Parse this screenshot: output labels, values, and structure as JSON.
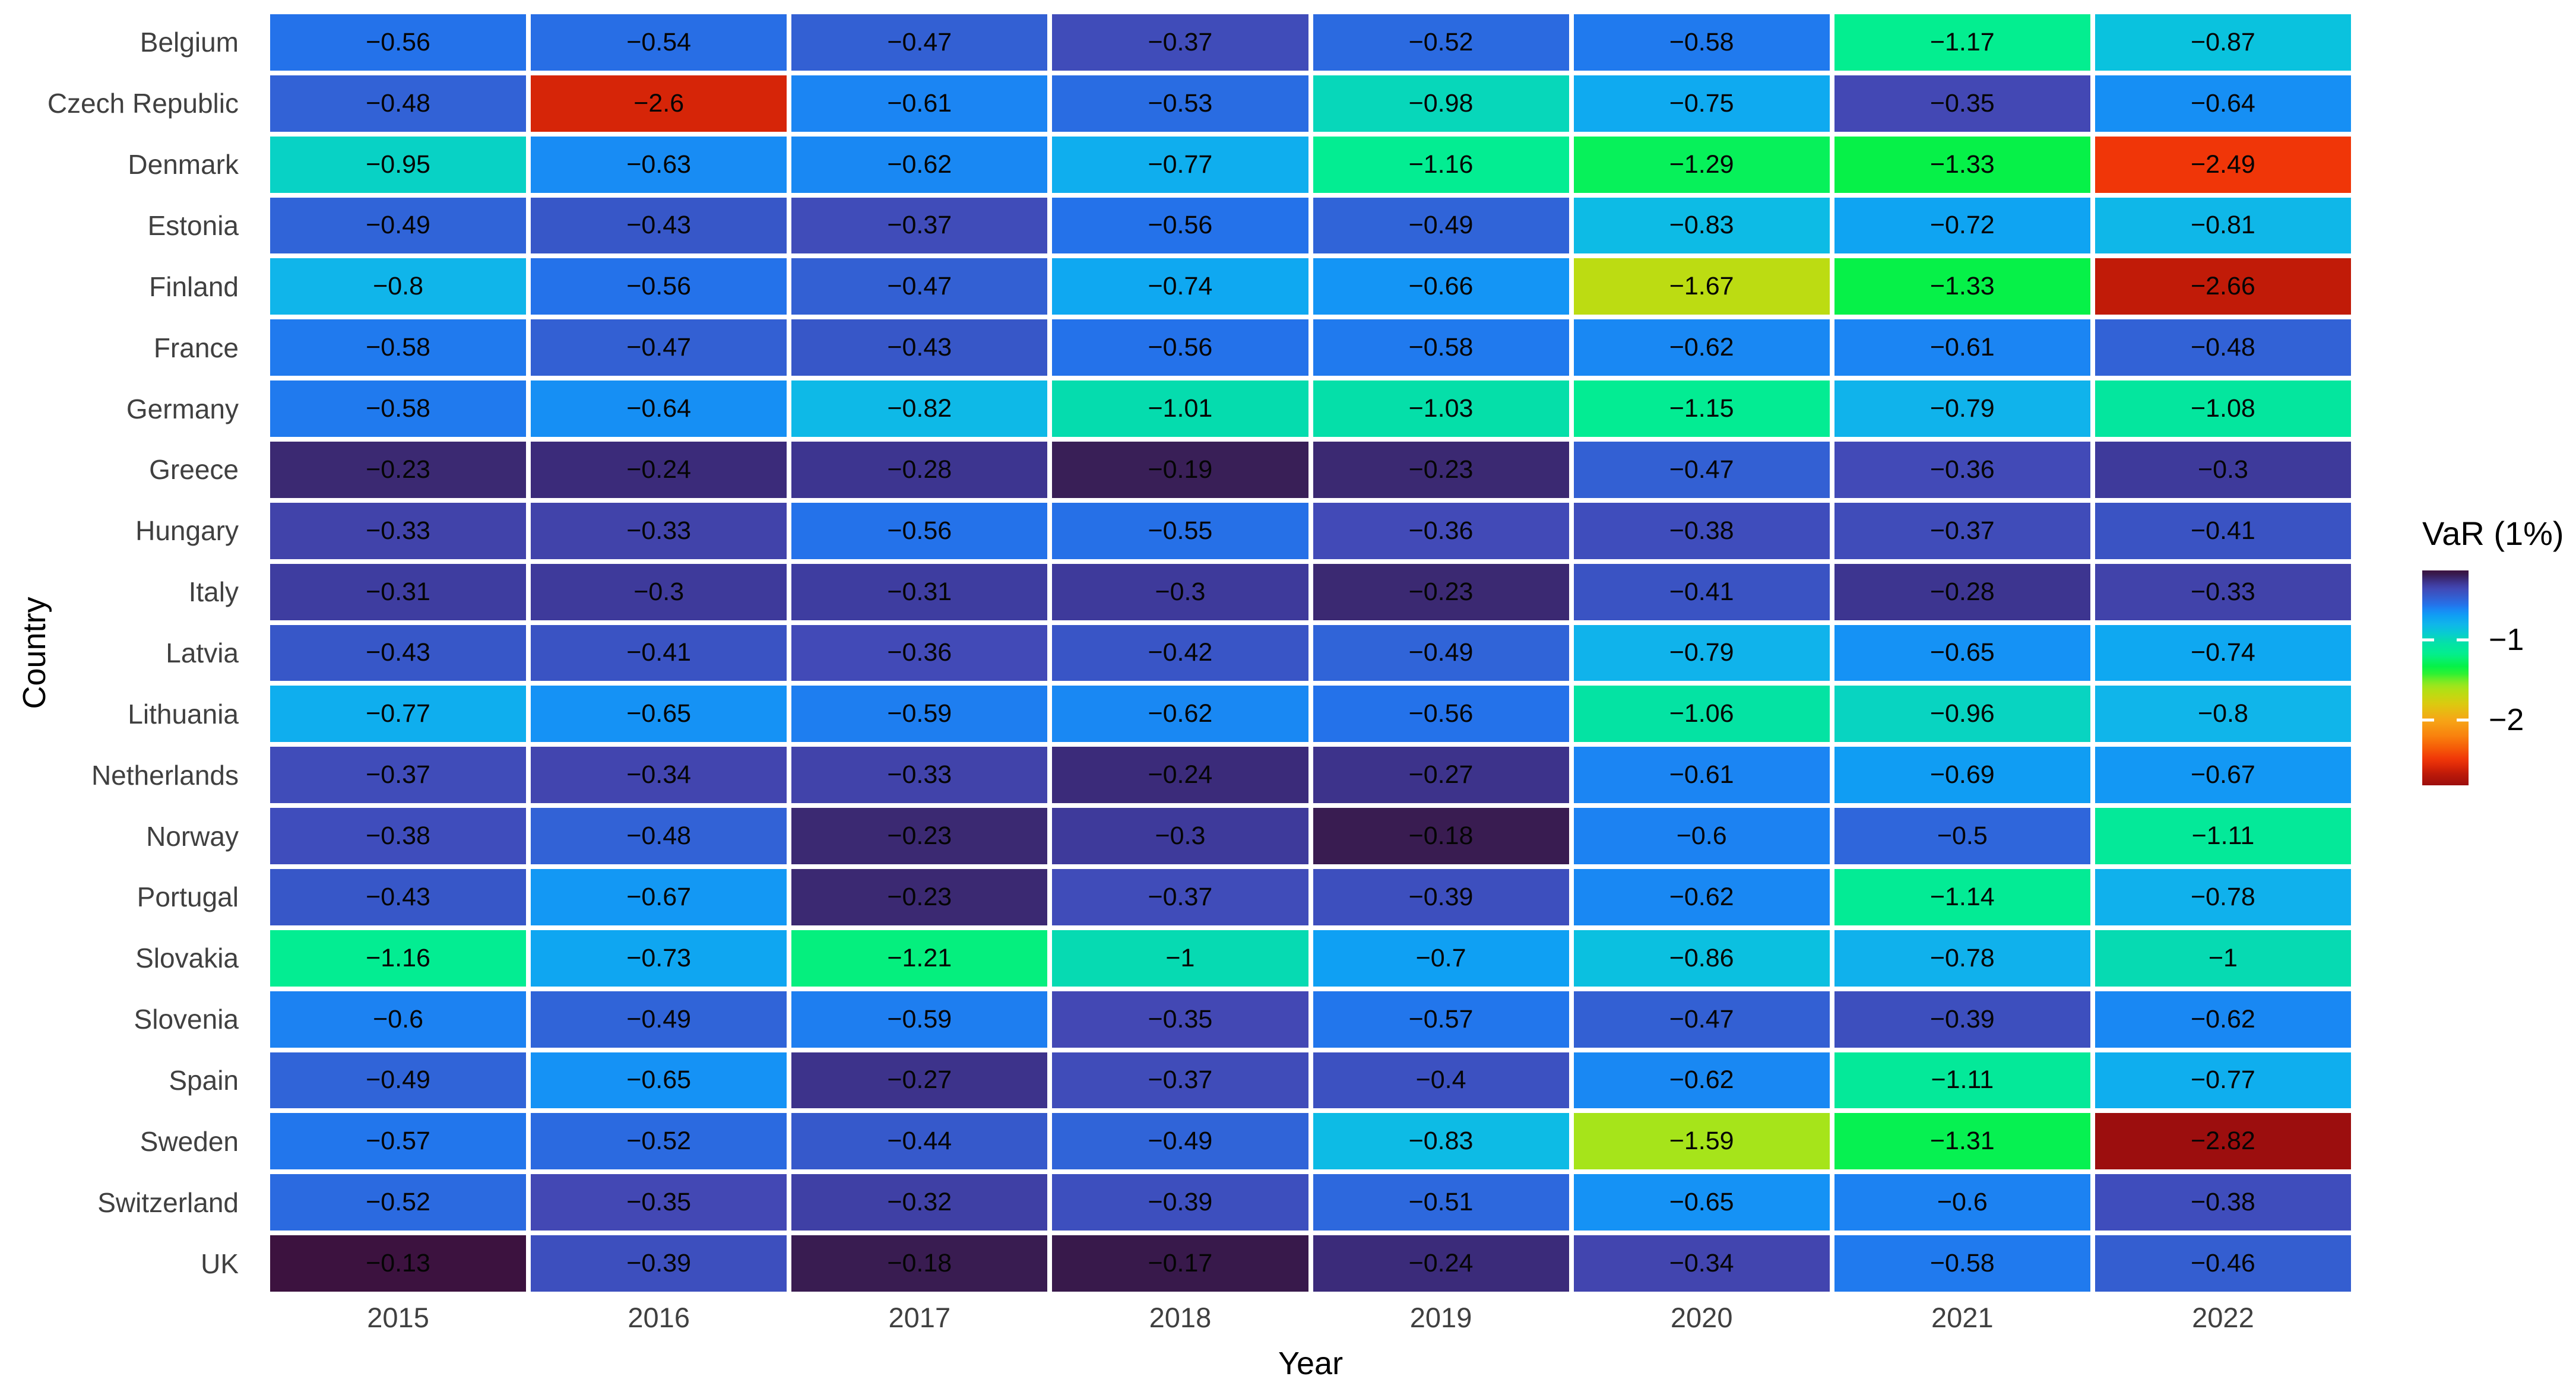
{
  "chart_data": {
    "type": "heatmap",
    "title": "",
    "xlabel": "Year",
    "ylabel": "Country",
    "legend_title": "VaR (1%)",
    "x": [
      "2015",
      "2016",
      "2017",
      "2018",
      "2019",
      "2020",
      "2021",
      "2022"
    ],
    "rows": [
      "Belgium",
      "Czech Republic",
      "Denmark",
      "Estonia",
      "Finland",
      "France",
      "Germany",
      "Greece",
      "Hungary",
      "Italy",
      "Latvia",
      "Lithuania",
      "Netherlands",
      "Norway",
      "Portugal",
      "Slovakia",
      "Slovenia",
      "Spain",
      "Sweden",
      "Switzerland",
      "UK"
    ],
    "values": [
      [
        -0.56,
        -0.54,
        -0.47,
        -0.37,
        -0.52,
        -0.58,
        -1.17,
        -0.87
      ],
      [
        -0.48,
        -2.6,
        -0.61,
        -0.53,
        -0.98,
        -0.75,
        -0.35,
        -0.64
      ],
      [
        -0.95,
        -0.63,
        -0.62,
        -0.77,
        -1.16,
        -1.29,
        -1.33,
        -2.49
      ],
      [
        -0.49,
        -0.43,
        -0.37,
        -0.56,
        -0.49,
        -0.83,
        -0.72,
        -0.81
      ],
      [
        -0.8,
        -0.56,
        -0.47,
        -0.74,
        -0.66,
        -1.67,
        -1.33,
        -2.66
      ],
      [
        -0.58,
        -0.47,
        -0.43,
        -0.56,
        -0.58,
        -0.62,
        -0.61,
        -0.48
      ],
      [
        -0.58,
        -0.64,
        -0.82,
        -1.01,
        -1.03,
        -1.15,
        -0.79,
        -1.08
      ],
      [
        -0.23,
        -0.24,
        -0.28,
        -0.19,
        -0.23,
        -0.47,
        -0.36,
        -0.3
      ],
      [
        -0.33,
        -0.33,
        -0.56,
        -0.55,
        -0.36,
        -0.38,
        -0.37,
        -0.41
      ],
      [
        -0.31,
        -0.3,
        -0.31,
        -0.3,
        -0.23,
        -0.41,
        -0.28,
        -0.33
      ],
      [
        -0.43,
        -0.41,
        -0.36,
        -0.42,
        -0.49,
        -0.79,
        -0.65,
        -0.74
      ],
      [
        -0.77,
        -0.65,
        -0.59,
        -0.62,
        -0.56,
        -1.06,
        -0.96,
        -0.8
      ],
      [
        -0.37,
        -0.34,
        -0.33,
        -0.24,
        -0.27,
        -0.61,
        -0.69,
        -0.67
      ],
      [
        -0.38,
        -0.48,
        -0.23,
        -0.3,
        -0.18,
        -0.6,
        -0.5,
        -1.11
      ],
      [
        -0.43,
        -0.67,
        -0.23,
        -0.37,
        -0.39,
        -0.62,
        -1.14,
        -0.78
      ],
      [
        -1.16,
        -0.73,
        -1.21,
        -1,
        -0.7,
        -0.86,
        -0.78,
        -1
      ],
      [
        -0.6,
        -0.49,
        -0.59,
        -0.35,
        -0.57,
        -0.47,
        -0.39,
        -0.62
      ],
      [
        -0.49,
        -0.65,
        -0.27,
        -0.37,
        -0.4,
        -0.62,
        -1.11,
        -0.77
      ],
      [
        -0.57,
        -0.52,
        -0.44,
        -0.49,
        -0.83,
        -1.59,
        -1.31,
        -2.82
      ],
      [
        -0.52,
        -0.35,
        -0.32,
        -0.39,
        -0.51,
        -0.65,
        -0.6,
        -0.38
      ],
      [
        -0.13,
        -0.39,
        -0.18,
        -0.17,
        -0.24,
        -0.34,
        -0.58,
        -0.46
      ]
    ],
    "color_domain": [
      -2.82,
      -0.13
    ],
    "legend_ticks": [
      -1,
      -2
    ],
    "colormap_stops": [
      [
        -0.13,
        "#3c123f"
      ],
      [
        -0.17,
        "#38194b"
      ],
      [
        -0.21,
        "#3a2463"
      ],
      [
        -0.24,
        "#3b2b7a"
      ],
      [
        -0.28,
        "#3d3590"
      ],
      [
        -0.31,
        "#3e3da0"
      ],
      [
        -0.35,
        "#4348b4"
      ],
      [
        -0.39,
        "#3d4fbe"
      ],
      [
        -0.43,
        "#3757c8"
      ],
      [
        -0.47,
        "#3360d3"
      ],
      [
        -0.51,
        "#2d68dd"
      ],
      [
        -0.56,
        "#2472ea"
      ],
      [
        -0.6,
        "#1c82f2"
      ],
      [
        -0.65,
        "#1592f5"
      ],
      [
        -0.7,
        "#0fa0f3"
      ],
      [
        -0.75,
        "#0faaf0"
      ],
      [
        -0.8,
        "#10b5ea"
      ],
      [
        -0.87,
        "#0ac2de"
      ],
      [
        -0.95,
        "#08d2c5"
      ],
      [
        -1.01,
        "#05dcae"
      ],
      [
        -1.08,
        "#04e69e"
      ],
      [
        -1.17,
        "#03ee90"
      ],
      [
        -1.25,
        "#07f06b"
      ],
      [
        -1.33,
        "#06f148"
      ],
      [
        -1.42,
        "#2af233"
      ],
      [
        -1.5,
        "#6fec26"
      ],
      [
        -1.59,
        "#a6e41a"
      ],
      [
        -1.67,
        "#bcdc12"
      ],
      [
        -1.8,
        "#dcca10"
      ],
      [
        -2.0,
        "#f6a616"
      ],
      [
        -2.2,
        "#f9820e"
      ],
      [
        -2.35,
        "#f65c08"
      ],
      [
        -2.49,
        "#f03608"
      ],
      [
        -2.6,
        "#d62508"
      ],
      [
        -2.66,
        "#c11b08"
      ],
      [
        -2.82,
        "#9c0e0e"
      ]
    ],
    "layout": {
      "grid_on": false,
      "legend_position": "right",
      "xlim": [
        "2015",
        "2022"
      ]
    }
  }
}
